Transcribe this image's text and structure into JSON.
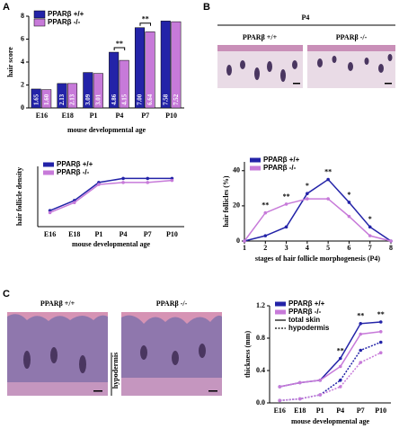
{
  "figure": {
    "panels": [
      {
        "label": "A"
      },
      {
        "label": "B",
        "title": "P4",
        "image_labels": [
          "PPARβ +/+",
          "PPARβ -/-"
        ]
      },
      {
        "label": "C",
        "image_labels": [
          "PPARβ +/+",
          "PPARβ -/-"
        ],
        "side_label": "hypodermis"
      }
    ]
  },
  "chart_data": [
    {
      "type": "bar",
      "y_label": "hair score",
      "x_label": "mouse developmental age",
      "categories": [
        "E16",
        "E18",
        "P1",
        "P4",
        "P7",
        "P10"
      ],
      "series": [
        {
          "name": "PPARβ +/+",
          "color": "#2323a8",
          "values": [
            1.65,
            2.13,
            3.09,
            4.86,
            7.0,
            7.58
          ],
          "value_labels": [
            "1.65",
            "2.13",
            "3.09",
            "4.86",
            "7.00",
            "7.58"
          ]
        },
        {
          "name": "PPARβ -/-",
          "color": "#c77ad9",
          "values": [
            1.6,
            2.13,
            3.01,
            4.15,
            6.64,
            7.52
          ],
          "value_labels": [
            "1.60",
            "2.13",
            "3.01",
            "4.15",
            "6.64",
            "7.52"
          ]
        }
      ],
      "ylim": [
        0,
        8
      ],
      "yticks": [
        0,
        2,
        4,
        6,
        8
      ],
      "legend": "top-left",
      "annotations": [
        {
          "x": "P4",
          "text": "**"
        },
        {
          "x": "P7",
          "text": "**"
        }
      ]
    },
    {
      "type": "line",
      "y_label": "hair follicle density",
      "x_label": "mouse developmental age",
      "categories": [
        "E16",
        "E18",
        "P1",
        "P4",
        "P7",
        "P10"
      ],
      "series": [
        {
          "name": "PPARβ +/+",
          "color": "#2323a8",
          "values": [
            8,
            13,
            22,
            24,
            24,
            24
          ]
        },
        {
          "name": "PPARβ -/-",
          "color": "#c77ad9",
          "values": [
            7,
            12,
            21,
            22,
            22,
            23
          ]
        }
      ],
      "ylim": [
        0,
        30
      ],
      "legend": "top-left"
    },
    {
      "type": "line",
      "y_label": "hair follicles (%)",
      "x_label": "stages of hair follicle morphogenesis (P4)",
      "x": [
        1,
        2,
        3,
        4,
        5,
        6,
        7,
        8
      ],
      "xlim": [
        1,
        8
      ],
      "xticks": [
        1,
        2,
        3,
        4,
        5,
        6,
        7,
        8
      ],
      "series": [
        {
          "name": "PPARβ +/+",
          "color": "#2323a8",
          "values": [
            0,
            3,
            8,
            27,
            35,
            22,
            8,
            0
          ]
        },
        {
          "name": "PPARβ -/-",
          "color": "#c77ad9",
          "values": [
            0,
            16,
            21,
            24,
            24,
            14,
            3,
            0
          ]
        }
      ],
      "ylim": [
        0,
        45
      ],
      "yticks": [
        0,
        20,
        40
      ],
      "legend": "top-left",
      "annotations": [
        {
          "x": 2,
          "text": "**"
        },
        {
          "x": 3,
          "text": "**"
        },
        {
          "x": 4,
          "text": "*"
        },
        {
          "x": 5,
          "text": "**"
        },
        {
          "x": 6,
          "text": "*"
        },
        {
          "x": 7,
          "text": "*"
        }
      ]
    },
    {
      "type": "line",
      "y_label": "thickness (mm)",
      "x_label": "mouse developmental age",
      "categories": [
        "E16",
        "E18",
        "P1",
        "P4",
        "P7",
        "P10"
      ],
      "legend_items": [
        {
          "name": "PPARβ +/+",
          "color": "#2323a8"
        },
        {
          "name": "PPARβ -/-",
          "color": "#c77ad9"
        },
        {
          "name": "total skin",
          "dash": "solid"
        },
        {
          "name": "hypodermis",
          "dash": "dotted"
        }
      ],
      "series": [
        {
          "color": "#2323a8",
          "dash": "solid",
          "values": [
            0.2,
            0.25,
            0.28,
            0.55,
            0.98,
            1.0
          ]
        },
        {
          "color": "#c77ad9",
          "dash": "solid",
          "values": [
            0.2,
            0.25,
            0.28,
            0.45,
            0.85,
            0.88
          ]
        },
        {
          "color": "#2323a8",
          "dash": "dotted",
          "values": [
            0.03,
            0.05,
            0.1,
            0.28,
            0.65,
            0.75
          ]
        },
        {
          "color": "#c77ad9",
          "dash": "dotted",
          "values": [
            0.03,
            0.05,
            0.1,
            0.2,
            0.5,
            0.62
          ]
        }
      ],
      "ylim": [
        0,
        1.2
      ],
      "yticks": [
        {
          "value": 0,
          "label": "0.0"
        },
        {
          "value": 0.4,
          "label": "0.4"
        },
        {
          "value": 0.8,
          "label": "0.8"
        },
        {
          "value": 1.2,
          "label": "1.2"
        }
      ],
      "legend": "top-left",
      "annotations": [
        {
          "x": "P4",
          "text": "**"
        },
        {
          "x": "P7",
          "text": "**"
        },
        {
          "x": "P10",
          "text": "**"
        }
      ]
    }
  ]
}
